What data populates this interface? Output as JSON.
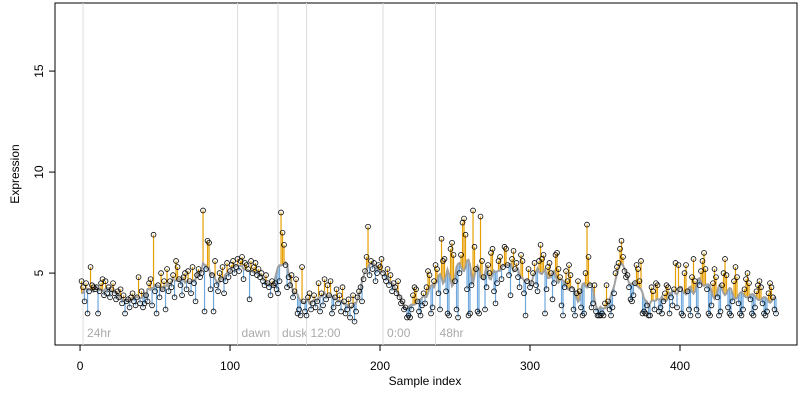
{
  "chart_data": {
    "type": "scatter",
    "xlabel": "Sample index",
    "ylabel": "Expression",
    "xlim": [
      -16.7,
      478
    ],
    "ylim": [
      1.44,
      18.37
    ],
    "xticks": [
      0,
      100,
      200,
      300,
      400
    ],
    "yticks": [
      5,
      10,
      15
    ],
    "point_color": "#000000",
    "above_color": "#e69f00",
    "below_color": "#6fa8dc",
    "line_color": "#a0a0a0",
    "markers": [
      {
        "x": 2,
        "label": "24hr"
      },
      {
        "x": 105,
        "label": "dawn"
      },
      {
        "x": 132,
        "label": "dusk"
      },
      {
        "x": 151,
        "label": "12:00"
      },
      {
        "x": 202,
        "label": "0:00"
      },
      {
        "x": 237,
        "label": "48hr"
      }
    ],
    "values": [
      4.6,
      4.3,
      3.6,
      4.5,
      3.0,
      4.1,
      5.3,
      4.4,
      4.3,
      4.2,
      4.3,
      3.0,
      4.1,
      4.5,
      4.7,
      3.9,
      4.6,
      4.0,
      4.3,
      3.8,
      4.2,
      4.5,
      4.0,
      3.7,
      4.1,
      3.8,
      4.2,
      3.5,
      3.9,
      3.0,
      3.6,
      3.7,
      3.3,
      3.8,
      4.0,
      3.6,
      3.4,
      3.8,
      4.8,
      3.5,
      4.1,
      3.3,
      3.5,
      3.9,
      3.6,
      4.5,
      4.7,
      3.4,
      6.9,
      4.1,
      3.0,
      4.4,
      3.8,
      5.0,
      4.2,
      4.6,
      3.2,
      5.2,
      4.1,
      4.6,
      4.3,
      4.9,
      3.8,
      5.6,
      5.3,
      4.7,
      4.4,
      3.9,
      4.8,
      5.0,
      4.2,
      5.1,
      4.6,
      4.0,
      5.3,
      4.5,
      3.6,
      4.9,
      5.2,
      4.8,
      5.0,
      8.1,
      3.1,
      5.2,
      6.6,
      6.5,
      4.2,
      4.9,
      3.1,
      5.6,
      4.4,
      4.1,
      5.0,
      4.7,
      5.3,
      4.0,
      4.6,
      5.5,
      4.8,
      5.1,
      5.4,
      5.6,
      5.0,
      5.3,
      5.7,
      5.1,
      5.6,
      5.8,
      4.7,
      5.5,
      5.4,
      5.2,
      3.7,
      5.6,
      5.0,
      5.3,
      5.5,
      4.9,
      5.2,
      4.8,
      5.0,
      4.6,
      4.4,
      4.9,
      4.5,
      4.3,
      3.9,
      4.6,
      4.4,
      4.5,
      4.2,
      4.0,
      4.6,
      8.0,
      7.0,
      6.4,
      5.4,
      4.3,
      4.8,
      4.4,
      4.9,
      3.8,
      4.1,
      4.7,
      3.0,
      3.2,
      2.9,
      5.3,
      3.6,
      3.1,
      2.9,
      3.8,
      4.0,
      3.2,
      3.5,
      3.9,
      3.3,
      3.6,
      4.5,
      3.1,
      4.0,
      3.4,
      4.7,
      3.7,
      4.4,
      3.9,
      4.6,
      3.0,
      3.3,
      3.8,
      4.2,
      3.5,
      3.9,
      3.1,
      4.3,
      3.6,
      3.0,
      3.2,
      3.7,
      2.8,
      3.4,
      3.9,
      2.6,
      3.1,
      3.8,
      4.1,
      4.3,
      3.6,
      4.7,
      5.1,
      5.8,
      7.3,
      4.9,
      5.6,
      5.2,
      5.5,
      4.6,
      5.0,
      5.4,
      5.3,
      5.7,
      5.0,
      4.8,
      4.6,
      5.2,
      4.4,
      4.9,
      4.1,
      4.5,
      4.3,
      4.0,
      4.6,
      3.8,
      3.5,
      3.6,
      3.2,
      3.3,
      2.8,
      2.9,
      2.8,
      3.2,
      3.9,
      4.3,
      4.2,
      3.6,
      3.1,
      2.9,
      3.4,
      4.0,
      3.5,
      4.3,
      5.1,
      4.9,
      3.0,
      3.3,
      4.6,
      5.4,
      5.2,
      4.0,
      3.2,
      6.7,
      5.6,
      5.7,
      4.1,
      3.0,
      2.9,
      6.2,
      6.5,
      5.9,
      4.6,
      3.2,
      2.8,
      5.0,
      5.9,
      7.5,
      7.7,
      6.9,
      4.2,
      2.9,
      3.0,
      4.4,
      8.1,
      6.3,
      5.2,
      3.1,
      3.0,
      7.8,
      5.6,
      4.8,
      3.2,
      4.3,
      5.4,
      5.0,
      6.0,
      6.2,
      4.1,
      3.5,
      4.5,
      5.6,
      5.8,
      4.7,
      5.3,
      6.3,
      6.2,
      5.4,
      4.9,
      3.9,
      5.7,
      6.1,
      5.2,
      5.5,
      4.8,
      4.3,
      5.9,
      5.6,
      4.0,
      2.9,
      4.6,
      5.2,
      4.3,
      4.5,
      5.0,
      5.5,
      4.4,
      4.1,
      5.6,
      6.4,
      5.7,
      5.9,
      3.0,
      4.2,
      5.3,
      5.5,
      5.0,
      3.7,
      4.5,
      5.9,
      6.0,
      5.2,
      4.8,
      3.4,
      2.9,
      4.3,
      5.1,
      4.6,
      5.4,
      4.9,
      4.2,
      3.2,
      2.9,
      4.0,
      4.6,
      4.1,
      3.3,
      2.9,
      3.0,
      5.0,
      7.4,
      5.8,
      4.4,
      3.3,
      3.5,
      4.4,
      3.1,
      2.9,
      2.9,
      2.9,
      3.0,
      2.9,
      3.5,
      4.4,
      3.6,
      3.2,
      2.9,
      3.3,
      4.0,
      5.0,
      5.3,
      5.5,
      6.2,
      6.6,
      5.8,
      5.1,
      4.8,
      4.9,
      4.3,
      3.7,
      3.6,
      3.9,
      4.5,
      5.4,
      5.2,
      4.6,
      5.6,
      3.0,
      3.1,
      3.0,
      3.4,
      2.9,
      2.9,
      4.3,
      4.1,
      3.2,
      4.5,
      4.4,
      3.1,
      3.3,
      3.0,
      3.6,
      4.0,
      4.4,
      4.3,
      3.0,
      3.8,
      3.4,
      4.2,
      5.5,
      3.3,
      5.4,
      4.2,
      3.0,
      2.9,
      5.0,
      5.4,
      4.1,
      3.2,
      2.9,
      4.8,
      5.7,
      4.6,
      3.2,
      2.9,
      4.4,
      5.1,
      5.6,
      6.0,
      5.2,
      4.2,
      3.0,
      2.9,
      3.4,
      4.5,
      5.2,
      4.8,
      3.8,
      2.9,
      3.1,
      4.4,
      5.0,
      5.7,
      4.9,
      3.3,
      3.0,
      2.9,
      3.6,
      4.6,
      5.3,
      4.8,
      3.5,
      3.0,
      2.9,
      3.2,
      4.2,
      4.7,
      5.0,
      4.5,
      3.7,
      3.0,
      2.9,
      3.3,
      4.1,
      4.4,
      4.6,
      4.3,
      3.5,
      3.0,
      2.9,
      3.1,
      4.0,
      4.5,
      4.3,
      3.8,
      3.2,
      3.0
    ]
  }
}
